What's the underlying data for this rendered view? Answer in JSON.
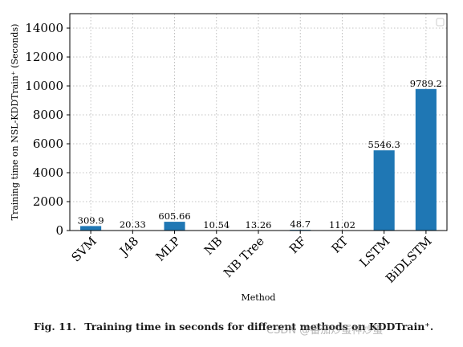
{
  "chart_data": {
    "type": "bar",
    "categories": [
      "SVM",
      "J48",
      "MLP",
      "NB",
      "NB Tree",
      "RF",
      "RT",
      "LSTM",
      "BiDLSTM"
    ],
    "values": [
      309.9,
      20.33,
      605.66,
      10.54,
      13.26,
      48.7,
      11.02,
      5546.3,
      9789.2
    ],
    "data_labels": [
      "309.9",
      "20.33",
      "605.66",
      "10.54",
      "13.26",
      "48.7",
      "11.02",
      "5546.3",
      "9789.2"
    ],
    "xlabel": "Method",
    "ylabel": "Training time on NSL-KDDTrain⁺ (Seconds)",
    "ylim": [
      0,
      15000
    ],
    "yticks": [
      0,
      2000,
      4000,
      6000,
      8000,
      10000,
      12000,
      14000
    ],
    "grid": true,
    "legend": "top-right (empty)",
    "bar_color": "#1f77b4"
  },
  "caption": {
    "figure_number": "Fig. 11.",
    "text": "Training time in seconds for different methods on KDDTrain⁺."
  },
  "watermark": "CSDN @番茄炒蛋神炒蛋"
}
